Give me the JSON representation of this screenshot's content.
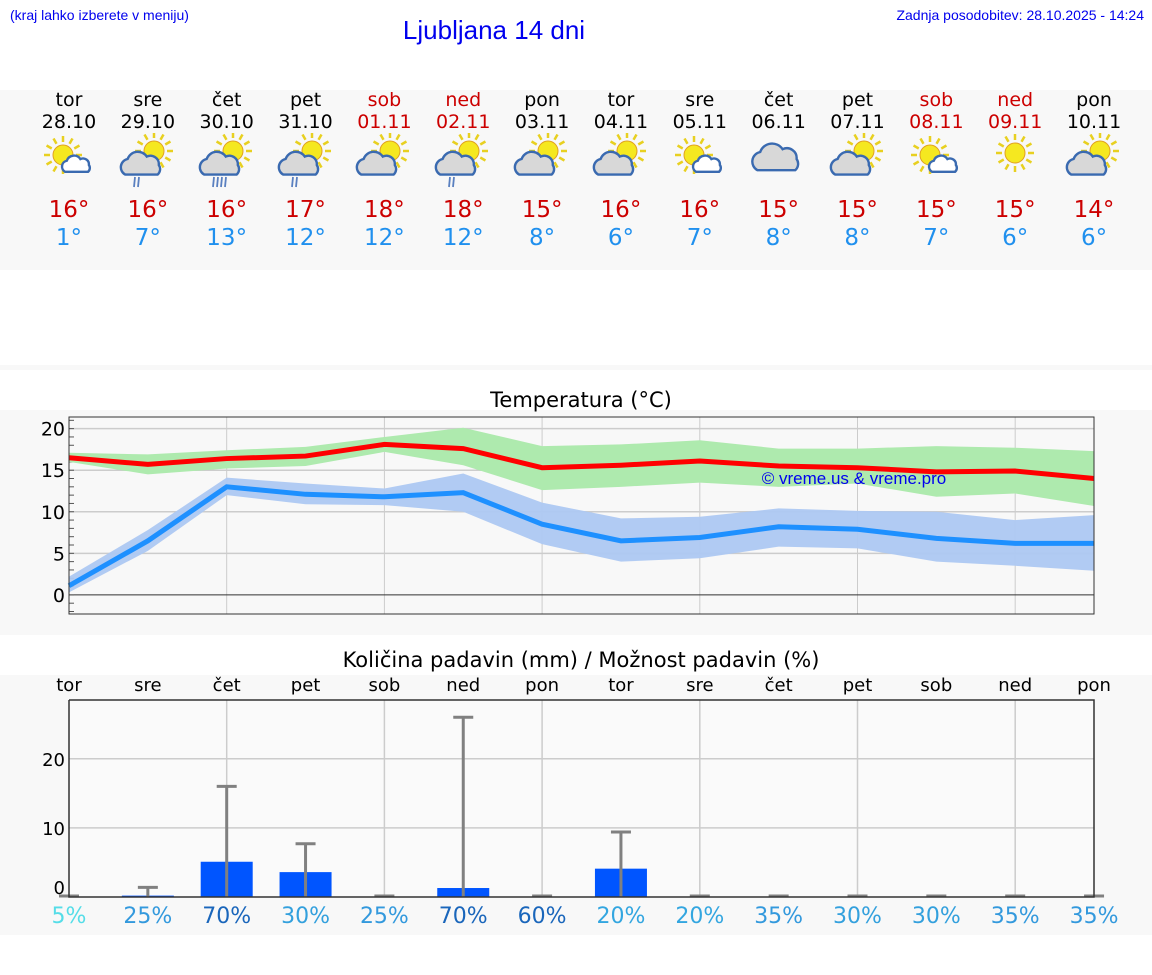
{
  "header": {
    "menu_hint": "(kraj lahko izberete v meniju)",
    "title": "Ljubljana 14 dni",
    "updated": "Zadnja posodobitev: 28.10.2025 - 14:24"
  },
  "days": [
    {
      "dow": "tor",
      "date": "28.10",
      "icon": "sun-small-cloud",
      "max": "16°",
      "min": "1°",
      "weekend": false
    },
    {
      "dow": "sre",
      "date": "29.10",
      "icon": "sun-cloud-rain",
      "max": "16°",
      "min": "7°",
      "weekend": false
    },
    {
      "dow": "čet",
      "date": "30.10",
      "icon": "sun-cloud-heavy-rain",
      "max": "16°",
      "min": "13°",
      "weekend": false
    },
    {
      "dow": "pet",
      "date": "31.10",
      "icon": "sun-cloud-rain",
      "max": "17°",
      "min": "12°",
      "weekend": false
    },
    {
      "dow": "sob",
      "date": "01.11",
      "icon": "sun-cloud",
      "max": "18°",
      "min": "12°",
      "weekend": true
    },
    {
      "dow": "ned",
      "date": "02.11",
      "icon": "sun-cloud-rain",
      "max": "18°",
      "min": "12°",
      "weekend": true
    },
    {
      "dow": "pon",
      "date": "03.11",
      "icon": "sun-cloud",
      "max": "15°",
      "min": "8°",
      "weekend": false
    },
    {
      "dow": "tor",
      "date": "04.11",
      "icon": "sun-cloud",
      "max": "16°",
      "min": "6°",
      "weekend": false
    },
    {
      "dow": "sre",
      "date": "05.11",
      "icon": "sun-small-cloud",
      "max": "16°",
      "min": "7°",
      "weekend": false
    },
    {
      "dow": "čet",
      "date": "06.11",
      "icon": "cloud",
      "max": "15°",
      "min": "8°",
      "weekend": false
    },
    {
      "dow": "pet",
      "date": "07.11",
      "icon": "sun-cloud",
      "max": "15°",
      "min": "8°",
      "weekend": false
    },
    {
      "dow": "sob",
      "date": "08.11",
      "icon": "sun-small-cloud",
      "max": "15°",
      "min": "7°",
      "weekend": true
    },
    {
      "dow": "ned",
      "date": "09.11",
      "icon": "sun",
      "max": "15°",
      "min": "6°",
      "weekend": true
    },
    {
      "dow": "pon",
      "date": "10.11",
      "icon": "sun-cloud",
      "max": "14°",
      "min": "6°",
      "weekend": false
    }
  ],
  "colors": {
    "max": "#ff0000",
    "min": "#1e90ff",
    "max_band": "#aeeaae",
    "min_band": "#adc8f2",
    "bar": "#0055ff",
    "whisker": "#808080",
    "watermark": "#0000ee"
  },
  "chart_data": [
    {
      "type": "line",
      "title": "Temperatura (°C)",
      "ylim": [
        -2.3,
        21.4
      ],
      "yticks": [
        0,
        5,
        10,
        15,
        20
      ],
      "grid": true,
      "x": [
        "28.10",
        "29.10",
        "30.10",
        "31.10",
        "01.11",
        "02.11",
        "03.11",
        "04.11",
        "05.11",
        "06.11",
        "07.11",
        "08.11",
        "09.11",
        "10.11"
      ],
      "watermark": "© vreme.us & vreme.pro",
      "series": [
        {
          "values": [
            16.5,
            15.7,
            16.4,
            16.7,
            18.1,
            17.6,
            15.3,
            15.6,
            16.1,
            15.5,
            15.3,
            14.8,
            14.9,
            14.0
          ],
          "band_upper": [
            17.1,
            16.9,
            17.4,
            17.8,
            19.0,
            20.1,
            17.9,
            18.1,
            18.6,
            17.6,
            17.6,
            17.9,
            17.7,
            17.3
          ],
          "band_lower": [
            16.0,
            14.5,
            15.2,
            15.5,
            17.2,
            15.6,
            12.6,
            13.0,
            13.5,
            13.0,
            13.4,
            11.8,
            12.2,
            10.7
          ],
          "color": "#ff0000"
        },
        {
          "values": [
            1.1,
            6.5,
            13.0,
            12.1,
            11.8,
            12.3,
            8.5,
            6.5,
            6.9,
            8.2,
            7.9,
            6.8,
            6.2,
            6.2
          ],
          "band_upper": [
            2.2,
            7.8,
            14.1,
            13.4,
            12.8,
            14.6,
            11.1,
            9.2,
            9.4,
            10.4,
            10.1,
            10.0,
            9.0,
            9.6
          ],
          "band_lower": [
            0.3,
            5.3,
            12.0,
            10.9,
            10.8,
            10.0,
            6.1,
            4.0,
            4.4,
            5.8,
            5.6,
            4.0,
            3.5,
            2.9
          ],
          "color": "#1e90ff"
        }
      ]
    },
    {
      "type": "bar",
      "title": "Količina padavin (mm) / Možnost padavin (%)",
      "ylim": [
        0,
        28.5
      ],
      "yticks": [
        0,
        10,
        20
      ],
      "grid": true,
      "categories": [
        "tor",
        "sre",
        "čet",
        "pet",
        "sob",
        "ned",
        "pon",
        "tor",
        "sre",
        "čet",
        "pet",
        "sob",
        "ned",
        "pon"
      ],
      "values": [
        0,
        0.2,
        5.1,
        3.6,
        0,
        1.3,
        0,
        4.1,
        0,
        0,
        0,
        0,
        0,
        0
      ],
      "whisker_max": [
        0,
        1.4,
        16,
        7.7,
        0,
        26,
        0,
        9.4,
        0,
        0,
        0,
        0,
        0,
        0
      ],
      "probability": [
        "5%",
        "25%",
        "70%",
        "30%",
        "25%",
        "70%",
        "60%",
        "20%",
        "20%",
        "35%",
        "30%",
        "30%",
        "35%",
        "35%"
      ],
      "probability_colors": [
        "#55dde8",
        "#3399dd",
        "#1a66bb",
        "#33a0dd",
        "#3399dd",
        "#1a66bb",
        "#1a66bb",
        "#33a6e0",
        "#33a6e0",
        "#3399dd",
        "#33a0dd",
        "#33a0dd",
        "#3399dd",
        "#3399dd"
      ]
    }
  ]
}
